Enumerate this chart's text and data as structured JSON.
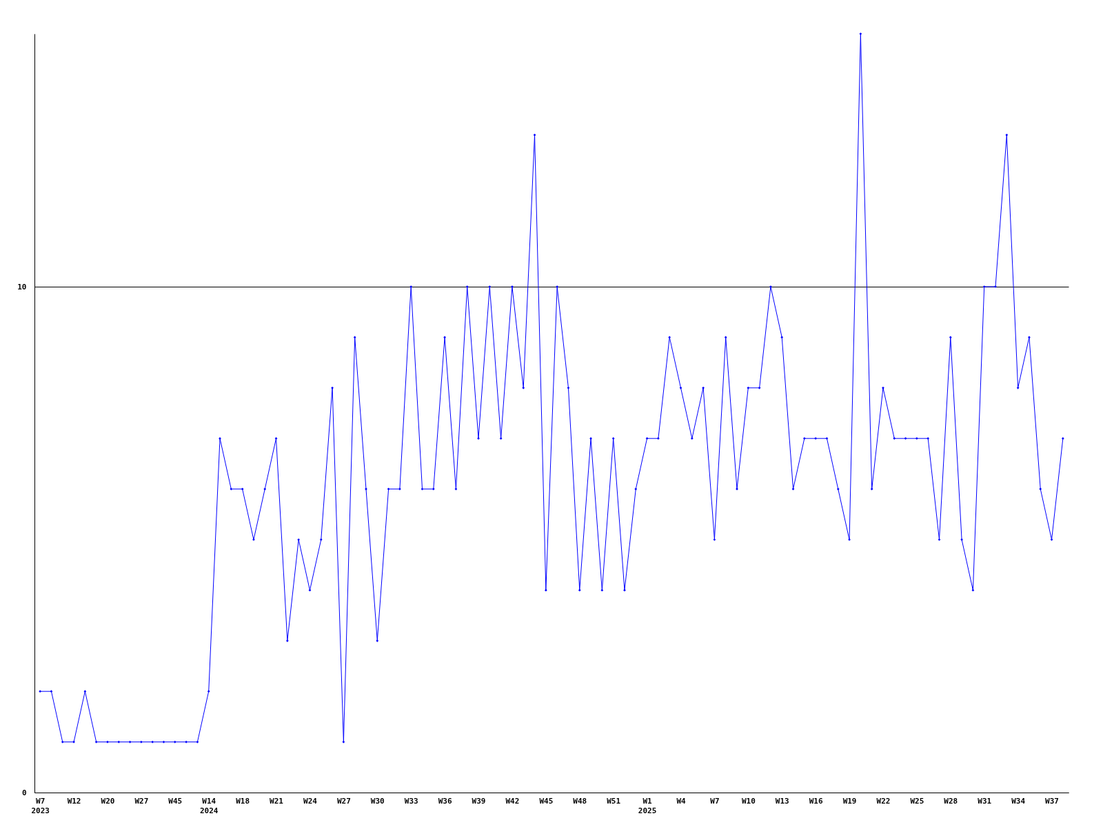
{
  "chart_data": {
    "type": "line",
    "categories": [
      "W7\n2023",
      null,
      null,
      "W12",
      null,
      null,
      "W20",
      null,
      null,
      "W27",
      null,
      null,
      "W45",
      null,
      null,
      "W14\n2024",
      null,
      null,
      "W18",
      null,
      null,
      "W21",
      null,
      null,
      "W24",
      null,
      null,
      "W27",
      null,
      null,
      "W30",
      null,
      null,
      "W33",
      null,
      null,
      "W36",
      null,
      null,
      "W39",
      null,
      null,
      "W42",
      null,
      null,
      "W45",
      null,
      null,
      "W48",
      null,
      null,
      "W51",
      null,
      null,
      "W1\n2025",
      null,
      null,
      "W4",
      null,
      null,
      "W7",
      null,
      null,
      "W10",
      null,
      null,
      "W13",
      null,
      null,
      "W16",
      null,
      null,
      "W19",
      null,
      null,
      "W22",
      null,
      null,
      "W25",
      null,
      null,
      "W28",
      null,
      null,
      "W31",
      null,
      null,
      "W34",
      null,
      null,
      "W37",
      null
    ],
    "series": [
      {
        "color": "#0000ff",
        "values": [
          2,
          2,
          1,
          1,
          2,
          1,
          1,
          1,
          1,
          1,
          1,
          1,
          1,
          1,
          1,
          2,
          7,
          6,
          6,
          5,
          6,
          7,
          3,
          5,
          4,
          5,
          8,
          1,
          9,
          6,
          3,
          6,
          6,
          10,
          6,
          6,
          9,
          6,
          10,
          7,
          10,
          7,
          10,
          8,
          13,
          4,
          10,
          8,
          4,
          7,
          4,
          7,
          4,
          6,
          7,
          7,
          9,
          8,
          7,
          8,
          5,
          9,
          6,
          8,
          8,
          10,
          9,
          6,
          7,
          7,
          7,
          6,
          5,
          15,
          6,
          8,
          7,
          7,
          7,
          7,
          5,
          9,
          5,
          4,
          10,
          10,
          13,
          8,
          9,
          6,
          5,
          7
        ]
      }
    ],
    "ylim": [
      0,
      15
    ],
    "yticks": [
      0,
      10
    ],
    "grid": "y",
    "marker": "diamond",
    "line_style": "solid",
    "legend": false
  }
}
